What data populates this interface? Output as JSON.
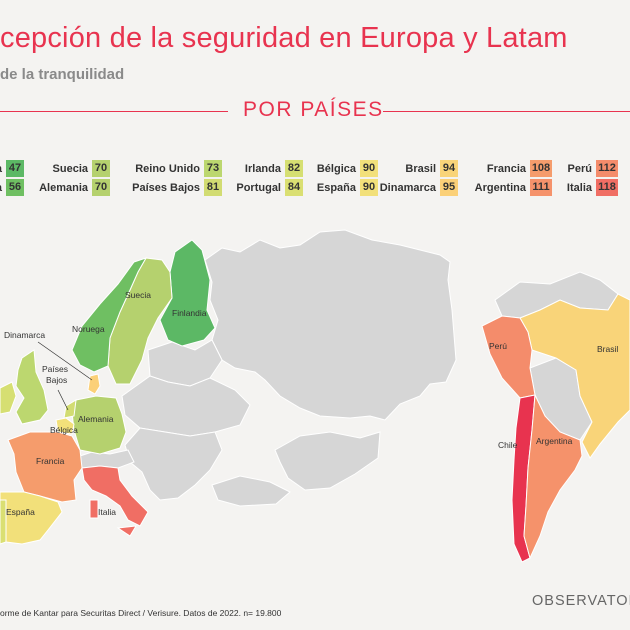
{
  "header": {
    "title": "cepción de la seguridad en Europa y Latam",
    "subtitle": "de la tranquilidad",
    "section": "POR PAÍSES"
  },
  "legend": [
    {
      "label": "a",
      "value": 47,
      "color": "#5cb865"
    },
    {
      "label": "a",
      "value": 56,
      "color": "#6fbf62"
    },
    {
      "label": "Suecia",
      "value": 70,
      "color": "#b5d16e"
    },
    {
      "label": "Alemania",
      "value": 70,
      "color": "#b5d16e"
    },
    {
      "label": "Reino Unido",
      "value": 73,
      "color": "#bcd76f"
    },
    {
      "label": "Países Bajos",
      "value": 81,
      "color": "#d2dc72"
    },
    {
      "label": "Irlanda",
      "value": 82,
      "color": "#d6df72"
    },
    {
      "label": "Portugal",
      "value": 84,
      "color": "#dadf72"
    },
    {
      "label": "Bélgica",
      "value": 90,
      "color": "#f2e07a"
    },
    {
      "label": "España",
      "value": 90,
      "color": "#f2e07a"
    },
    {
      "label": "Brasil",
      "value": 94,
      "color": "#f9d479"
    },
    {
      "label": "Dinamarca",
      "value": 95,
      "color": "#fbd078"
    },
    {
      "label": "Francia",
      "value": 108,
      "color": "#f59c6c"
    },
    {
      "label": "Argentina",
      "value": 111,
      "color": "#f5926b"
    },
    {
      "label": "Perú",
      "value": 112,
      "color": "#f48c6b"
    },
    {
      "label": "Italia",
      "value": 118,
      "color": "#f06e64"
    }
  ],
  "map_labels": {
    "suecia": "Suecia",
    "noruega": "Noruega",
    "finlandia": "Finlandia",
    "dinamarca": "Dinamarca",
    "paises_bajos": "Países Bajos",
    "alemania": "Alemania",
    "belgica": "Bélgica",
    "francia": "Francia",
    "espana": "España",
    "italia": "Italia",
    "peru": "Perú",
    "brasil": "Brasil",
    "chile": "Chile",
    "argentina": "Argentina"
  },
  "colors": {
    "accent": "#e8334f",
    "neutral_land": "#d6d6d6",
    "border": "#ffffff",
    "finland": "#5cb865",
    "norway": "#6fbf62",
    "sweden": "#b5d16e",
    "germany": "#b5d16e",
    "uk": "#bcd76f",
    "netherlands": "#d2dc72",
    "ireland": "#d6df72",
    "portugal": "#dadf72",
    "belgium": "#f2e07a",
    "spain": "#f2e07a",
    "brazil": "#f9d479",
    "denmark": "#fbd078",
    "france": "#f59c6c",
    "argentina": "#f5926b",
    "peru": "#f48c6b",
    "italy": "#f06e64",
    "chile": "#e8334f"
  },
  "footer": {
    "source": "orme de Kantar para Securitas Direct / Verisure. Datos de 2022. n= 19.800",
    "brand": "OBSERVATOR"
  }
}
